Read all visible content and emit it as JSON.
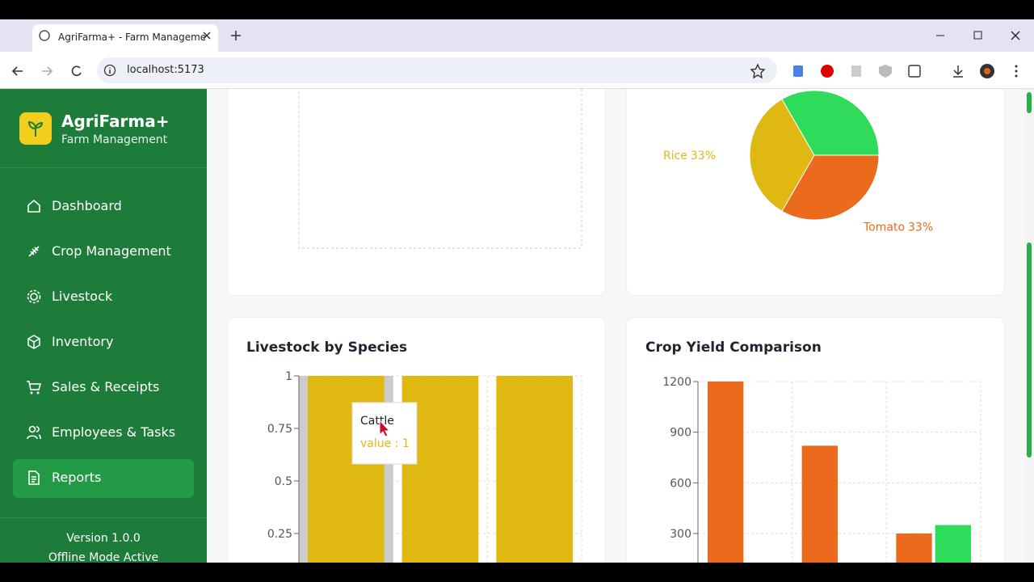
{
  "browser": {
    "tab_title": "AgriFarma+ - Farm Manageme",
    "url": "localhost:5173"
  },
  "sidebar": {
    "brand": "AgriFarma+",
    "tagline": "Farm Management",
    "nav": [
      "Dashboard",
      "Crop Management",
      "Livestock",
      "Inventory",
      "Sales & Receipts",
      "Employees & Tasks",
      "Reports"
    ],
    "active_nav": 6,
    "version": "Version 1.0.0",
    "status": "Offline Mode Active"
  },
  "chart_data": [
    {
      "type": "pie",
      "categories": [
        "Tomato",
        "Rice",
        null
      ],
      "values": [
        33.3,
        33.3,
        33.3
      ],
      "value_labels": [
        "33%",
        "33%",
        null
      ],
      "colors": [
        "#eb6a1c",
        "#e0b812",
        "#2edb5a"
      ]
    },
    {
      "type": "bar",
      "title": "Livestock by Species",
      "categories": [
        "Cattle",
        null,
        null
      ],
      "values": [
        1,
        1,
        1
      ],
      "color": "#e0b812",
      "ylim": [
        0,
        1
      ],
      "yticks": [
        0.25,
        0.5,
        0.75,
        1
      ],
      "grid": true,
      "tooltip": {
        "title": "Cattle",
        "text": "value : 1"
      }
    },
    {
      "type": "bar",
      "title": "Crop Yield Comparison",
      "categories": [
        null,
        null,
        null
      ],
      "series": [
        {
          "color": "#eb6a1c",
          "values": [
            1200,
            820,
            300
          ]
        },
        {
          "color": "#2edb5a",
          "values": [
            null,
            null,
            350
          ]
        }
      ],
      "ylim": [
        0,
        1200
      ],
      "yticks": [
        300,
        600,
        900,
        1200
      ],
      "grid": true
    }
  ]
}
